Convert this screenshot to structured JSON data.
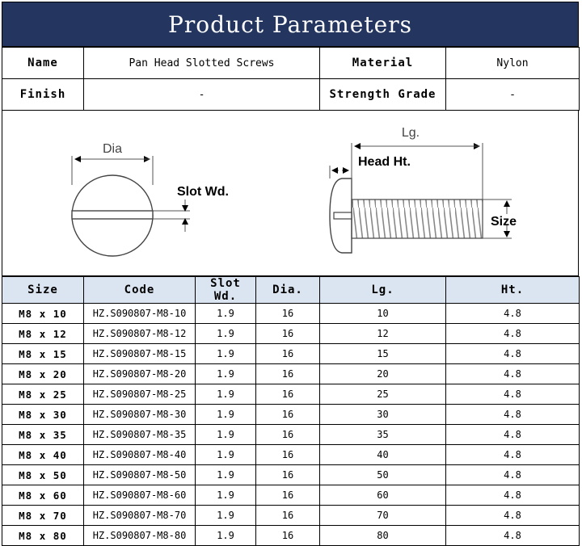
{
  "title": "Product Parameters",
  "info": {
    "name_label": "Name",
    "name_value": "Pan Head Slotted Screws",
    "material_label": "Material",
    "material_value": "Nylon",
    "finish_label": "Finish",
    "finish_value": "-",
    "grade_label": "Strength Grade",
    "grade_value": "-"
  },
  "diagram": {
    "dia_label": "Dia",
    "slot_label": "Slot Wd.",
    "lg_label": "Lg.",
    "head_label": "Head Ht.",
    "size_label": "Size"
  },
  "table": {
    "headers": [
      "Size",
      "Code",
      "Slot Wd.",
      "Dia.",
      "Lg.",
      "Ht."
    ],
    "rows": [
      [
        "M8 x 10",
        "HZ.S090807-M8-10",
        "1.9",
        "16",
        "10",
        "4.8"
      ],
      [
        "M8 x 12",
        "HZ.S090807-M8-12",
        "1.9",
        "16",
        "12",
        "4.8"
      ],
      [
        "M8 x 15",
        "HZ.S090807-M8-15",
        "1.9",
        "16",
        "15",
        "4.8"
      ],
      [
        "M8 x 20",
        "HZ.S090807-M8-20",
        "1.9",
        "16",
        "20",
        "4.8"
      ],
      [
        "M8 x 25",
        "HZ.S090807-M8-25",
        "1.9",
        "16",
        "25",
        "4.8"
      ],
      [
        "M8 x 30",
        "HZ.S090807-M8-30",
        "1.9",
        "16",
        "30",
        "4.8"
      ],
      [
        "M8 x 35",
        "HZ.S090807-M8-35",
        "1.9",
        "16",
        "35",
        "4.8"
      ],
      [
        "M8 x 40",
        "HZ.S090807-M8-40",
        "1.9",
        "16",
        "40",
        "4.8"
      ],
      [
        "M8 x 50",
        "HZ.S090807-M8-50",
        "1.9",
        "16",
        "50",
        "4.8"
      ],
      [
        "M8 x 60",
        "HZ.S090807-M8-60",
        "1.9",
        "16",
        "60",
        "4.8"
      ],
      [
        "M8 x 70",
        "HZ.S090807-M8-70",
        "1.9",
        "16",
        "70",
        "4.8"
      ],
      [
        "M8 x 80",
        "HZ.S090807-M8-80",
        "1.9",
        "16",
        "80",
        "4.8"
      ]
    ]
  },
  "colors": {
    "title_bg": "#24365f",
    "header_bg": "#dbe5f1"
  }
}
